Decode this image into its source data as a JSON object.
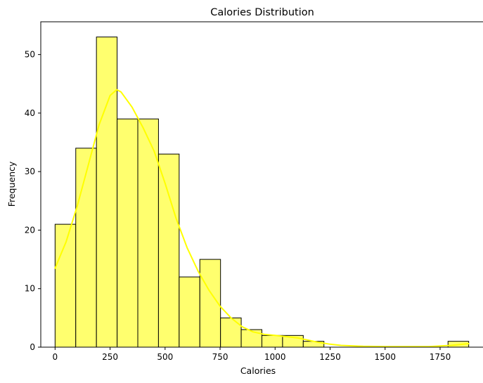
{
  "chart_data": {
    "type": "bar",
    "title": "Calories Distribution",
    "xlabel": "Calories",
    "ylabel": "Frequency",
    "xlim": [
      -65,
      1945
    ],
    "ylim": [
      0,
      55.6
    ],
    "xticks": [
      0,
      250,
      500,
      750,
      1000,
      1250,
      1500,
      1750
    ],
    "yticks": [
      0,
      10,
      20,
      30,
      40,
      50
    ],
    "bin_start": 0,
    "bin_width": 94,
    "values": [
      21,
      34,
      53,
      39,
      39,
      33,
      12,
      15,
      5,
      3,
      2,
      2,
      1,
      0,
      0,
      0,
      0,
      0,
      0,
      1
    ],
    "kde": {
      "x": [
        0,
        50,
        100,
        150,
        200,
        250,
        280,
        300,
        350,
        400,
        450,
        500,
        550,
        600,
        650,
        700,
        750,
        800,
        850,
        900,
        950,
        1000,
        1050,
        1100,
        1150,
        1200,
        1250,
        1300,
        1400,
        1500,
        1600,
        1700,
        1800,
        1880
      ],
      "y": [
        13.5,
        18,
        24,
        31,
        38,
        43,
        44,
        43.6,
        41,
        37.5,
        33.5,
        28,
        22,
        17,
        13,
        9.7,
        7,
        5,
        3.5,
        2.6,
        2.2,
        2.0,
        1.8,
        1.6,
        1.2,
        0.8,
        0.5,
        0.3,
        0.15,
        0.1,
        0.1,
        0.1,
        0.3,
        0.6
      ]
    },
    "bar_color": "#ffff6e",
    "line_color": "#ffff00",
    "grid": false
  }
}
